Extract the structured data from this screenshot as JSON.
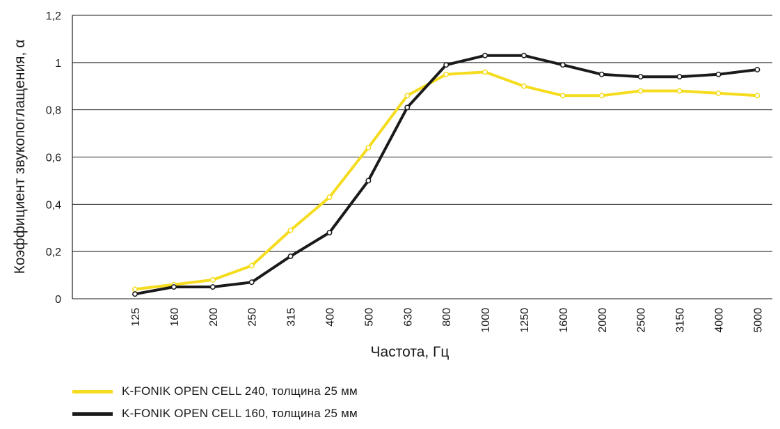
{
  "chart_data": {
    "type": "line",
    "title": "",
    "xlabel": "Частота, Гц",
    "ylabel": "Коэффициент звукопоглащения, α",
    "categories": [
      "125",
      "160",
      "200",
      "250",
      "315",
      "400",
      "500",
      "630",
      "800",
      "1000",
      "1250",
      "1600",
      "2000",
      "2500",
      "3150",
      "4000",
      "5000"
    ],
    "y_tick_labels": [
      "0",
      "0,2",
      "0,4",
      "0,6",
      "0,8",
      "1",
      "1,2"
    ],
    "ylim": [
      0,
      1.2
    ],
    "grid": true,
    "legend_position": "bottom-left",
    "series": [
      {
        "name": "K-FONIK OPEN CELL 240, толщина 25 мм",
        "color": "#f5dc1e",
        "x": [
          "125",
          "160",
          "200",
          "250",
          "315",
          "400",
          "500",
          "630",
          "800",
          "1000",
          "1250",
          "1600",
          "2000",
          "2500",
          "3150",
          "4000",
          "5000"
        ],
        "values": [
          0.04,
          0.06,
          0.08,
          0.14,
          0.29,
          0.43,
          0.64,
          0.86,
          0.95,
          0.96,
          0.9,
          0.86,
          0.86,
          0.88,
          0.88,
          0.87,
          0.86
        ]
      },
      {
        "name": "K-FONIK OPEN CELL 160, толщина 25 мм",
        "color": "#1a1a1a",
        "x": [
          "125",
          "160",
          "200",
          "250",
          "315",
          "400",
          "500",
          "630",
          "800",
          "1000",
          "1250",
          "1600",
          "2000",
          "2500",
          "3150",
          "4000",
          "5000"
        ],
        "values": [
          0.02,
          0.05,
          0.05,
          0.07,
          0.18,
          0.28,
          0.5,
          0.81,
          0.99,
          1.03,
          1.03,
          0.99,
          0.95,
          0.94,
          0.94,
          0.95,
          0.97
        ]
      }
    ]
  }
}
